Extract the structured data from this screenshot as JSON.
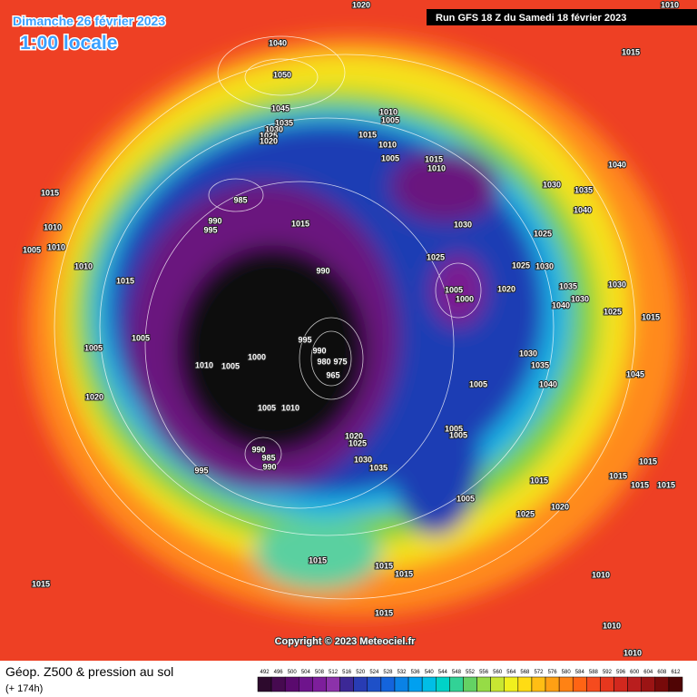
{
  "header": {
    "date": "Dimanche 26 février 2023",
    "time": "1:00 locale",
    "run": "Run GFS 18 Z du Samedi 18 février 2023"
  },
  "map": {
    "isobar_labels": [
      "1020",
      "1010",
      "1040",
      "1050",
      "1045",
      "1035",
      "1030",
      "1025",
      "1020",
      "1015",
      "1010",
      "1005",
      "1015",
      "1010",
      "1005",
      "1015",
      "1010",
      "1040",
      "1030",
      "1035",
      "1040",
      "1015",
      "985",
      "990",
      "995",
      "1015",
      "1030",
      "1025",
      "1010",
      "1005",
      "1010",
      "1010",
      "1025",
      "1025",
      "1030",
      "990",
      "1015",
      "1005",
      "1000",
      "1020",
      "1035",
      "1030",
      "1030",
      "1040",
      "1025",
      "1015",
      "1005",
      "1005",
      "995",
      "990",
      "980",
      "975",
      "965",
      "1000",
      "1010",
      "1005",
      "1030",
      "1035",
      "1040",
      "1005",
      "1045",
      "1020",
      "1005",
      "1010",
      "1005",
      "1005",
      "1020",
      "1025",
      "990",
      "985",
      "990",
      "1030",
      "1035",
      "995",
      "1015",
      "1015",
      "1015",
      "1015",
      "1015",
      "1005",
      "1020",
      "1025",
      "1015",
      "1015",
      "1015",
      "1015",
      "1010",
      "1015",
      "1010",
      "1010"
    ],
    "copyright": "Copyright © 2023 Meteociel.fr"
  },
  "legend": {
    "title": "Géop. Z500 & pression au sol",
    "lead": "(+ 174h)",
    "scale": [
      492,
      496,
      500,
      504,
      508,
      512,
      516,
      520,
      524,
      528,
      532,
      536,
      540,
      544,
      548,
      552,
      556,
      560,
      564,
      568,
      572,
      576,
      580,
      584,
      588,
      592,
      596,
      600,
      604,
      608,
      612
    ],
    "colors": [
      "#2d0a2d",
      "#460a50",
      "#5a0a6e",
      "#6e148c",
      "#7d1e9b",
      "#8c32aa",
      "#3c2896",
      "#283cb4",
      "#1e50c8",
      "#1464dc",
      "#0a82e6",
      "#00a0f0",
      "#00bee6",
      "#00d2c8",
      "#32d296",
      "#64d264",
      "#96dc46",
      "#c8e632",
      "#f0f01e",
      "#ffdc14",
      "#ffbe14",
      "#ffa014",
      "#ff8214",
      "#ff6414",
      "#f54b1e",
      "#e6371e",
      "#d2281e",
      "#b91e1e",
      "#9b1414",
      "#780a0a",
      "#500505"
    ]
  }
}
